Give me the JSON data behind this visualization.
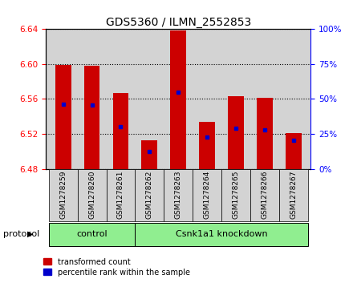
{
  "title": "GDS5360 / ILMN_2552853",
  "samples": [
    "GSM1278259",
    "GSM1278260",
    "GSM1278261",
    "GSM1278262",
    "GSM1278263",
    "GSM1278264",
    "GSM1278265",
    "GSM1278266",
    "GSM1278267"
  ],
  "bar_tops": [
    6.599,
    6.598,
    6.567,
    6.513,
    6.638,
    6.534,
    6.563,
    6.561,
    6.521
  ],
  "bar_base": 6.48,
  "blue_vals": [
    6.554,
    6.553,
    6.528,
    6.5,
    6.568,
    6.516,
    6.526,
    6.525,
    6.513
  ],
  "ylim": [
    6.48,
    6.64
  ],
  "yticks": [
    6.48,
    6.52,
    6.56,
    6.6,
    6.64
  ],
  "right_ylim": [
    0,
    100
  ],
  "right_yticks": [
    0,
    25,
    50,
    75,
    100
  ],
  "right_yticklabels": [
    "0%",
    "25%",
    "50%",
    "75%",
    "100%"
  ],
  "bar_color": "#cc0000",
  "blue_color": "#0000cc",
  "control_label": "control",
  "knockdown_label": "Csnk1a1 knockdown",
  "control_count": 3,
  "knockdown_count": 6,
  "protocol_label": "protocol",
  "legend_red": "transformed count",
  "legend_blue": "percentile rank within the sample",
  "plot_bg": "#d3d3d3",
  "col_bg": "#d3d3d3",
  "group_green": "#90ee90",
  "title_fontsize": 10,
  "tick_fontsize": 7.5,
  "label_fontsize": 7.5
}
